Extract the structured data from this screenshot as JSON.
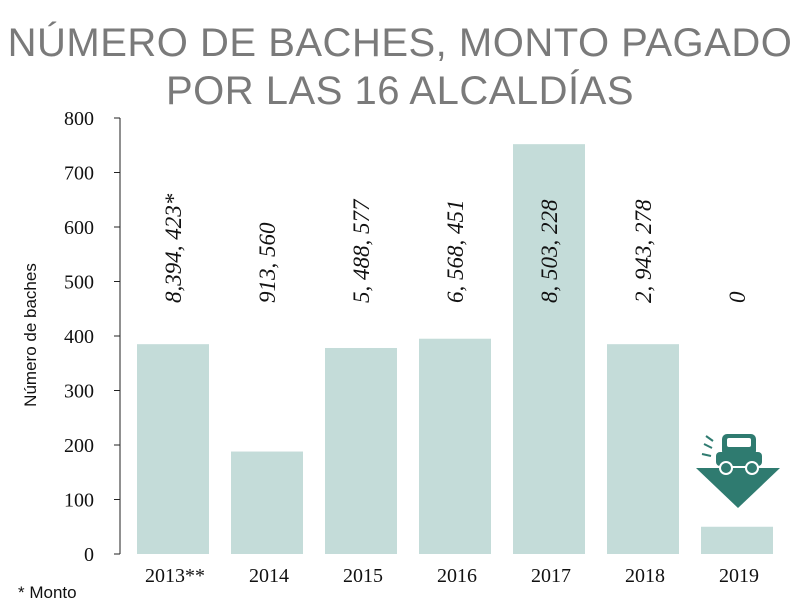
{
  "chart_data": {
    "type": "bar",
    "title": "NÚMERO DE BACHES, MONTO PAGADO",
    "subtitle": "POR LAS 16 ALCALDÍAS",
    "xlabel": "",
    "ylabel": "Número de baches",
    "ylim": [
      0,
      800
    ],
    "yticks": [
      "0",
      "100",
      "200",
      "300",
      "400",
      "500",
      "600",
      "700",
      "800"
    ],
    "grid": false,
    "categories": [
      "2013**",
      "2014",
      "2015",
      "2016",
      "2017",
      "2018",
      "2019"
    ],
    "values": [
      385,
      188,
      378,
      395,
      752,
      385,
      50
    ],
    "data_labels": [
      "8,394, 423*",
      "913, 560",
      "5, 488, 577",
      "6, 568, 451",
      "8, 503, 228",
      "2, 943, 278",
      "0"
    ],
    "bar_color": "#c4dcd9",
    "icon_color": "#2f7b70",
    "icon": "car-in-pothole-icon",
    "footnote": "* Monto"
  }
}
